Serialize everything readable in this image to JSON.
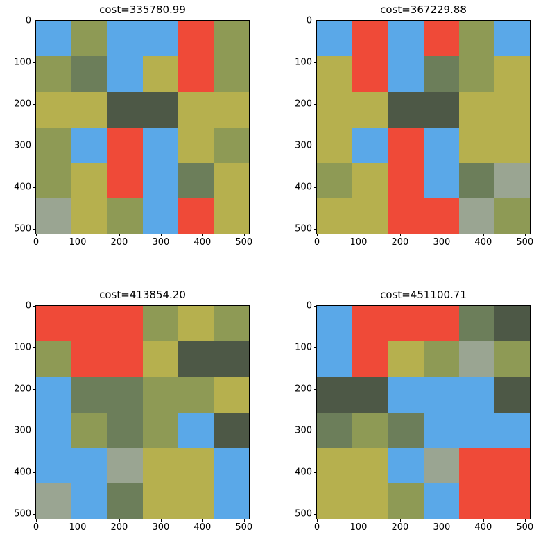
{
  "colors": {
    "blue": "#5aa8e8",
    "red": "#ef4a38",
    "olive": "#8e9a55",
    "yellow": "#b6b04e",
    "green": "#6c7e5a",
    "grey": "#9aa592",
    "dark": "#4d5846"
  },
  "axes": {
    "x_ticks": [
      "0",
      "100",
      "200",
      "300",
      "400",
      "500"
    ],
    "y_ticks": [
      "0",
      "100",
      "200",
      "300",
      "400",
      "500"
    ]
  },
  "panels": [
    {
      "title": "cost=335780.99",
      "tiles": [
        [
          "blue",
          "olive",
          "blue",
          "blue",
          "red",
          "olive"
        ],
        [
          "olive",
          "green",
          "blue",
          "yellow",
          "red",
          "olive"
        ],
        [
          "yellow",
          "yellow",
          "dark",
          "dark",
          "yellow",
          "yellow"
        ],
        [
          "olive",
          "blue",
          "red",
          "blue",
          "yellow",
          "olive"
        ],
        [
          "olive",
          "yellow",
          "red",
          "blue",
          "green",
          "yellow"
        ],
        [
          "grey",
          "yellow",
          "olive",
          "blue",
          "red",
          "yellow"
        ]
      ]
    },
    {
      "title": "cost=367229.88",
      "tiles": [
        [
          "blue",
          "red",
          "blue",
          "red",
          "olive",
          "blue"
        ],
        [
          "yellow",
          "red",
          "blue",
          "green",
          "olive",
          "yellow"
        ],
        [
          "yellow",
          "yellow",
          "dark",
          "dark",
          "yellow",
          "yellow"
        ],
        [
          "yellow",
          "blue",
          "red",
          "blue",
          "yellow",
          "yellow"
        ],
        [
          "olive",
          "yellow",
          "red",
          "blue",
          "green",
          "grey"
        ],
        [
          "yellow",
          "yellow",
          "red",
          "red",
          "grey",
          "olive"
        ]
      ]
    },
    {
      "title": "cost=413854.20",
      "tiles": [
        [
          "red",
          "red",
          "red",
          "olive",
          "yellow",
          "olive"
        ],
        [
          "olive",
          "red",
          "red",
          "yellow",
          "dark",
          "dark"
        ],
        [
          "blue",
          "green",
          "green",
          "olive",
          "olive",
          "yellow"
        ],
        [
          "blue",
          "olive",
          "green",
          "olive",
          "blue",
          "dark"
        ],
        [
          "blue",
          "blue",
          "grey",
          "yellow",
          "yellow",
          "blue"
        ],
        [
          "grey",
          "blue",
          "green",
          "yellow",
          "yellow",
          "blue"
        ]
      ]
    },
    {
      "title": "cost=451100.71",
      "tiles": [
        [
          "blue",
          "red",
          "red",
          "red",
          "green",
          "dark"
        ],
        [
          "blue",
          "red",
          "yellow",
          "olive",
          "grey",
          "olive"
        ],
        [
          "dark",
          "dark",
          "blue",
          "blue",
          "blue",
          "dark"
        ],
        [
          "green",
          "olive",
          "green",
          "blue",
          "blue",
          "blue"
        ],
        [
          "yellow",
          "yellow",
          "blue",
          "grey",
          "red",
          "red"
        ],
        [
          "yellow",
          "yellow",
          "olive",
          "blue",
          "red",
          "red"
        ]
      ]
    }
  ]
}
